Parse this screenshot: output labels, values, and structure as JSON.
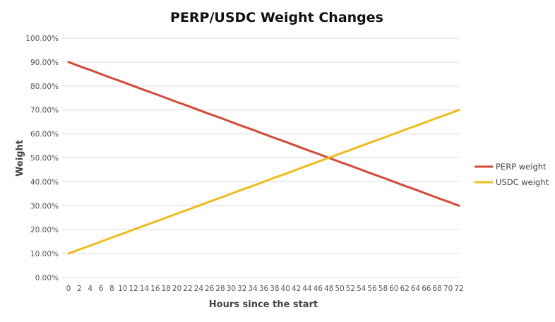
{
  "chart_data": {
    "type": "line",
    "title": "PERP/USDC Weight Changes",
    "xlabel": "Hours since the start",
    "ylabel": "Weight",
    "x": [
      0,
      2,
      4,
      6,
      8,
      10,
      12,
      14,
      16,
      18,
      20,
      22,
      24,
      26,
      28,
      30,
      32,
      34,
      36,
      38,
      40,
      42,
      44,
      46,
      48,
      50,
      52,
      54,
      56,
      58,
      60,
      62,
      64,
      66,
      68,
      70,
      72
    ],
    "ylim": [
      0,
      1
    ],
    "yticks": [
      "0.00%",
      "10.00%",
      "20.00%",
      "30.00%",
      "40.00%",
      "50.00%",
      "60.00%",
      "70.00%",
      "80.00%",
      "90.00%",
      "100.00%"
    ],
    "grid": true,
    "legend_position": "right",
    "series": [
      {
        "name": "PERP weight",
        "color": "#d44a36",
        "values": [
          0.9,
          0.883,
          0.867,
          0.85,
          0.833,
          0.817,
          0.8,
          0.783,
          0.767,
          0.75,
          0.733,
          0.717,
          0.7,
          0.683,
          0.667,
          0.65,
          0.633,
          0.617,
          0.6,
          0.583,
          0.567,
          0.55,
          0.533,
          0.517,
          0.5,
          0.483,
          0.467,
          0.45,
          0.433,
          0.417,
          0.4,
          0.383,
          0.367,
          0.35,
          0.333,
          0.317,
          0.3
        ]
      },
      {
        "name": "USDC weight",
        "color": "#f0bc1b",
        "values": [
          0.1,
          0.117,
          0.133,
          0.15,
          0.167,
          0.183,
          0.2,
          0.217,
          0.233,
          0.25,
          0.267,
          0.283,
          0.3,
          0.317,
          0.333,
          0.35,
          0.367,
          0.383,
          0.4,
          0.417,
          0.433,
          0.45,
          0.467,
          0.483,
          0.5,
          0.517,
          0.533,
          0.55,
          0.567,
          0.583,
          0.6,
          0.617,
          0.633,
          0.65,
          0.667,
          0.683,
          0.7
        ]
      }
    ]
  }
}
